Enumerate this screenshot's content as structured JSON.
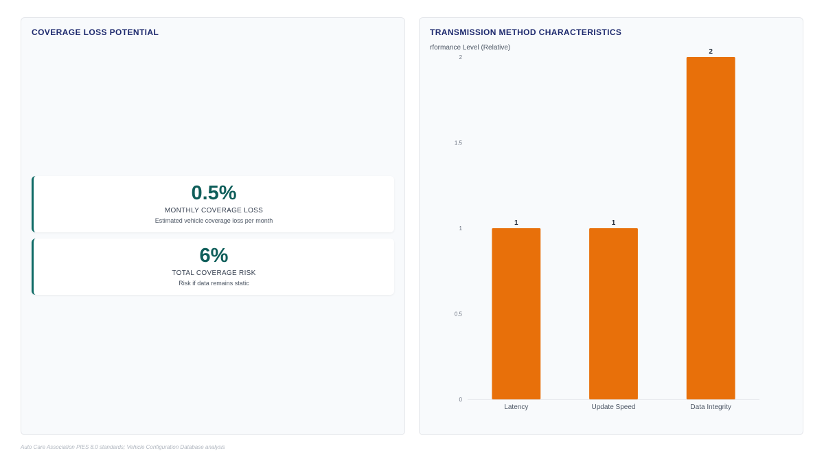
{
  "left_panel": {
    "title": "COVERAGE LOSS POTENTIAL",
    "cards": [
      {
        "value": "0.5%",
        "label": "MONTHLY COVERAGE LOSS",
        "description": "Estimated vehicle coverage loss per month"
      },
      {
        "value": "6%",
        "label": "TOTAL COVERAGE RISK",
        "description": "Risk if data remains static"
      }
    ],
    "accent_color": "#0f6b66"
  },
  "right_panel": {
    "title": "TRANSMISSION METHOD CHARACTERISTICS"
  },
  "chart_data": {
    "type": "bar",
    "categories": [
      "Latency",
      "Update Speed",
      "Data Integrity"
    ],
    "values": [
      1,
      1,
      2
    ],
    "data_labels": [
      "1",
      "1",
      "2"
    ],
    "ylabel": "rformance Level (Relative)",
    "xlabel": "",
    "ylim": [
      0,
      2
    ],
    "yticks": [
      0,
      0.5,
      1,
      1.5,
      2
    ],
    "ytick_labels": [
      "0",
      "0.5",
      "1",
      "1.5",
      "2"
    ],
    "bar_color": "#e8700a",
    "grid": false,
    "legend": "none"
  },
  "footer": {
    "source": "Auto Care Association PIES 8.0 standards; Vehicle Configuration Database analysis"
  }
}
